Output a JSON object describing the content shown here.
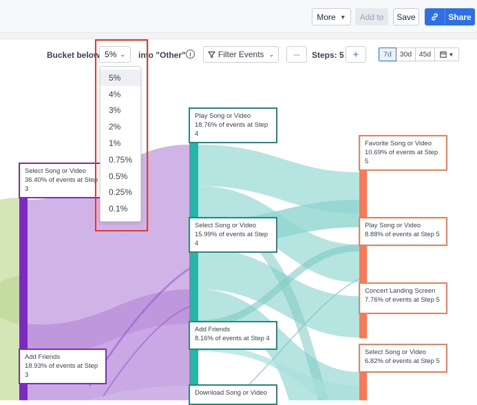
{
  "toolbar": {
    "more_label": "More",
    "add_to_label": "Add to",
    "save_label": "Save",
    "share_label": "Share"
  },
  "controls": {
    "bucket_label": "Bucket below",
    "bucket_value": "5%",
    "other_label": "into \"Other\"",
    "filter_label": "Filter Events",
    "steps_label": "Steps: 5",
    "ranges": [
      "7d",
      "30d",
      "45d"
    ],
    "active_range": "7d"
  },
  "dropdown": {
    "options": [
      "5%",
      "4%",
      "3%",
      "2%",
      "1%",
      "0.75%",
      "0.5%",
      "0.25%",
      "0.1%"
    ],
    "selected": "5%"
  },
  "chart_data": {
    "type": "sankey",
    "colors": {
      "step3": "#7b2cbf",
      "step3_flow": "#c9a7e3",
      "step4": "#27b5a8",
      "step4_flow": "#a9e0dc",
      "step5": "#f47a5c",
      "step2_flow": "#cfe2ae"
    },
    "columns": [
      {
        "step": 3,
        "nodes": [
          {
            "label": "Select Song or Video",
            "detail": "36.40% of events at Step 3",
            "percent": 36.4
          },
          {
            "label": "Add Friends",
            "detail": "18.93% of events at Step 3",
            "percent": 18.93
          }
        ]
      },
      {
        "step": 4,
        "nodes": [
          {
            "label": "Play Song or Video",
            "detail": "18.76% of events at Step 4",
            "percent": 18.76
          },
          {
            "label": "Select Song or Video",
            "detail": "15.99% of events at Step 4",
            "percent": 15.99
          },
          {
            "label": "Add Friends",
            "detail": "8.16% of events at Step 4",
            "percent": 8.16
          },
          {
            "label": "Download Song or Video",
            "detail": "",
            "percent": null
          }
        ]
      },
      {
        "step": 5,
        "nodes": [
          {
            "label": "Favorite Song or Video",
            "detail": "10.69% of events at Step 5",
            "percent": 10.69
          },
          {
            "label": "Play Song or Video",
            "detail": "8.88% of events at Step 5",
            "percent": 8.88
          },
          {
            "label": "Concert Landing Screen",
            "detail": "7.76% of events at Step 5",
            "percent": 7.76
          },
          {
            "label": "Select Song or Video",
            "detail": "6.82% of events at Step 5",
            "percent": 6.82
          }
        ]
      }
    ]
  }
}
